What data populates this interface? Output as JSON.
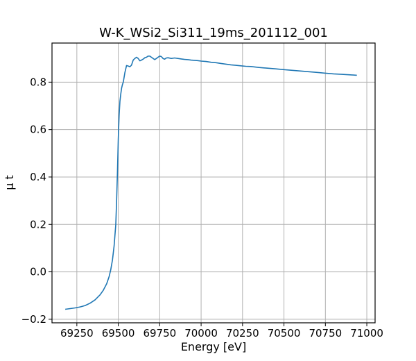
{
  "chart_data": {
    "type": "line",
    "title": "W-K_WSi2_Si311_19ms_201112_001",
    "xlabel": "Energy [eV]",
    "ylabel": "μ t",
    "xlim": [
      69100,
      71050
    ],
    "ylim": [
      -0.215,
      0.965
    ],
    "xticks": [
      69250,
      69500,
      69750,
      70000,
      70250,
      70500,
      70750,
      71000
    ],
    "xtick_labels": [
      "69250",
      "69500",
      "69750",
      "70000",
      "70250",
      "70500",
      "70750",
      "71000"
    ],
    "yticks": [
      -0.2,
      0.0,
      0.2,
      0.4,
      0.6,
      0.8
    ],
    "ytick_labels": [
      "−0.2",
      "0.0",
      "0.2",
      "0.4",
      "0.6",
      "0.8"
    ],
    "grid": true,
    "colors": {
      "series": "#1f77b4"
    },
    "series": [
      {
        "x": [
          69180,
          69210,
          69240,
          69270,
          69300,
          69330,
          69360,
          69390,
          69410,
          69430,
          69445,
          69455,
          69465,
          69475,
          69485,
          69490,
          69495,
          69500,
          69505,
          69510,
          69515,
          69520,
          69525,
          69530,
          69540,
          69550,
          69560,
          69570,
          69580,
          69590,
          69600,
          69610,
          69620,
          69630,
          69640,
          69650,
          69660,
          69670,
          69680,
          69690,
          69700,
          69710,
          69720,
          69730,
          69740,
          69750,
          69760,
          69770,
          69780,
          69790,
          69800,
          69820,
          69840,
          69860,
          69880,
          69900,
          69920,
          69940,
          69960,
          69980,
          70000,
          70030,
          70060,
          70090,
          70120,
          70150,
          70180,
          70210,
          70240,
          70270,
          70300,
          70350,
          70400,
          70450,
          70500,
          70550,
          70600,
          70650,
          70700,
          70750,
          70800,
          70850,
          70900,
          70940
        ],
        "y": [
          -0.158,
          -0.155,
          -0.152,
          -0.148,
          -0.142,
          -0.132,
          -0.118,
          -0.097,
          -0.077,
          -0.05,
          -0.02,
          0.01,
          0.05,
          0.11,
          0.2,
          0.3,
          0.42,
          0.56,
          0.66,
          0.72,
          0.75,
          0.775,
          0.79,
          0.8,
          0.84,
          0.87,
          0.868,
          0.865,
          0.872,
          0.893,
          0.9,
          0.905,
          0.9,
          0.89,
          0.893,
          0.897,
          0.903,
          0.905,
          0.91,
          0.91,
          0.905,
          0.9,
          0.895,
          0.9,
          0.905,
          0.91,
          0.908,
          0.9,
          0.897,
          0.902,
          0.903,
          0.9,
          0.902,
          0.9,
          0.898,
          0.896,
          0.895,
          0.893,
          0.892,
          0.891,
          0.889,
          0.887,
          0.884,
          0.882,
          0.879,
          0.876,
          0.873,
          0.871,
          0.869,
          0.867,
          0.866,
          0.862,
          0.859,
          0.856,
          0.853,
          0.85,
          0.847,
          0.844,
          0.841,
          0.838,
          0.835,
          0.833,
          0.831,
          0.829
        ]
      }
    ]
  }
}
